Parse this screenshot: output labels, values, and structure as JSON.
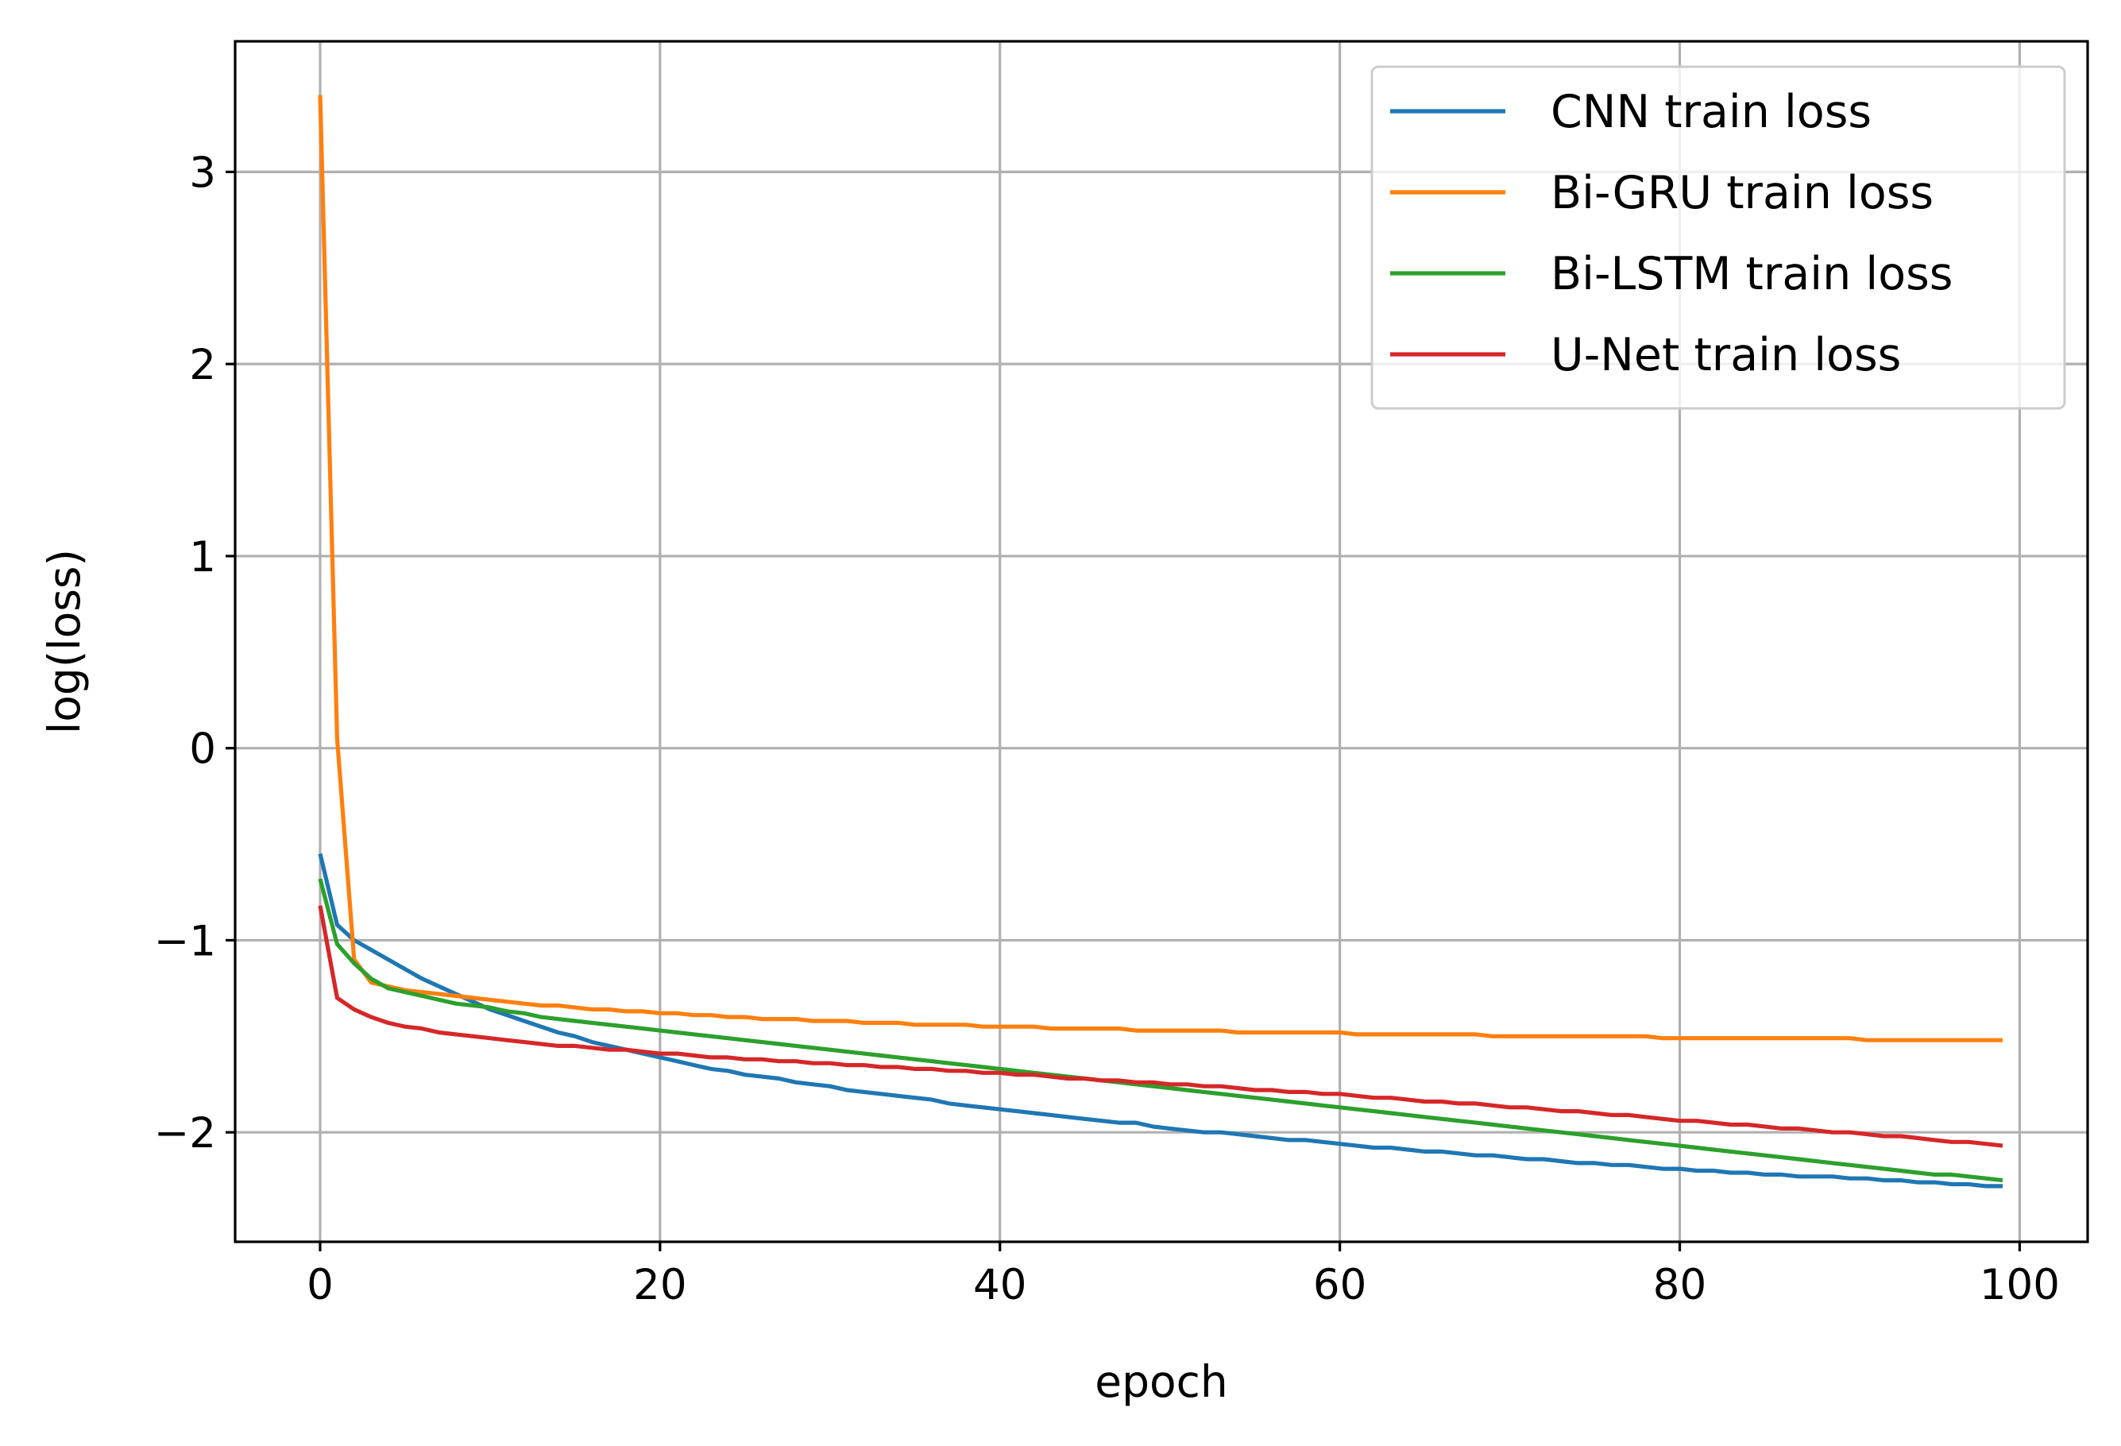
{
  "chart_data": {
    "type": "line",
    "title": "",
    "xlabel": "epoch",
    "ylabel": "log(loss)",
    "xlim": [
      -5,
      104
    ],
    "ylim": [
      -2.57,
      3.68
    ],
    "xticks": [
      0,
      20,
      40,
      60,
      80,
      100
    ],
    "yticks": [
      -2,
      -1,
      0,
      1,
      2,
      3
    ],
    "xtick_labels": [
      "0",
      "20",
      "40",
      "60",
      "80",
      "100"
    ],
    "ytick_labels": [
      "−2",
      "−1",
      "0",
      "1",
      "2",
      "3"
    ],
    "grid": true,
    "legend_position": "top-right",
    "x": [
      0,
      1,
      2,
      3,
      4,
      5,
      6,
      7,
      8,
      9,
      10,
      11,
      12,
      13,
      14,
      15,
      16,
      17,
      18,
      19,
      20,
      21,
      22,
      23,
      24,
      25,
      26,
      27,
      28,
      29,
      30,
      31,
      32,
      33,
      34,
      35,
      36,
      37,
      38,
      39,
      40,
      41,
      42,
      43,
      44,
      45,
      46,
      47,
      48,
      49,
      50,
      51,
      52,
      53,
      54,
      55,
      56,
      57,
      58,
      59,
      60,
      61,
      62,
      63,
      64,
      65,
      66,
      67,
      68,
      69,
      70,
      71,
      72,
      73,
      74,
      75,
      76,
      77,
      78,
      79,
      80,
      81,
      82,
      83,
      84,
      85,
      86,
      87,
      88,
      89,
      90,
      91,
      92,
      93,
      94,
      95,
      96,
      97,
      98,
      99
    ],
    "series": [
      {
        "name": "CNN train loss",
        "color": "#1f77b4",
        "values": [
          -0.55,
          -0.92,
          -1.0,
          -1.05,
          -1.1,
          -1.15,
          -1.2,
          -1.24,
          -1.28,
          -1.32,
          -1.36,
          -1.39,
          -1.42,
          -1.45,
          -1.48,
          -1.5,
          -1.53,
          -1.55,
          -1.57,
          -1.59,
          -1.61,
          -1.63,
          -1.65,
          -1.67,
          -1.68,
          -1.7,
          -1.71,
          -1.72,
          -1.74,
          -1.75,
          -1.76,
          -1.78,
          -1.79,
          -1.8,
          -1.81,
          -1.82,
          -1.83,
          -1.85,
          -1.86,
          -1.87,
          -1.88,
          -1.89,
          -1.9,
          -1.91,
          -1.92,
          -1.93,
          -1.94,
          -1.95,
          -1.95,
          -1.97,
          -1.98,
          -1.99,
          -2.0,
          -2.0,
          -2.01,
          -2.02,
          -2.03,
          -2.04,
          -2.04,
          -2.05,
          -2.06,
          -2.07,
          -2.08,
          -2.08,
          -2.09,
          -2.1,
          -2.1,
          -2.11,
          -2.12,
          -2.12,
          -2.13,
          -2.14,
          -2.14,
          -2.15,
          -2.16,
          -2.16,
          -2.17,
          -2.17,
          -2.18,
          -2.19,
          -2.19,
          -2.2,
          -2.2,
          -2.21,
          -2.21,
          -2.22,
          -2.22,
          -2.23,
          -2.23,
          -2.23,
          -2.24,
          -2.24,
          -2.25,
          -2.25,
          -2.26,
          -2.26,
          -2.27,
          -2.27,
          -2.28,
          -2.28
        ]
      },
      {
        "name": "Bi-GRU train loss",
        "color": "#ff7f0e",
        "values": [
          3.4,
          0.05,
          -1.1,
          -1.22,
          -1.24,
          -1.26,
          -1.27,
          -1.28,
          -1.29,
          -1.3,
          -1.31,
          -1.32,
          -1.33,
          -1.34,
          -1.34,
          -1.35,
          -1.36,
          -1.36,
          -1.37,
          -1.37,
          -1.38,
          -1.38,
          -1.39,
          -1.39,
          -1.4,
          -1.4,
          -1.41,
          -1.41,
          -1.41,
          -1.42,
          -1.42,
          -1.42,
          -1.43,
          -1.43,
          -1.43,
          -1.44,
          -1.44,
          -1.44,
          -1.44,
          -1.45,
          -1.45,
          -1.45,
          -1.45,
          -1.46,
          -1.46,
          -1.46,
          -1.46,
          -1.46,
          -1.47,
          -1.47,
          -1.47,
          -1.47,
          -1.47,
          -1.47,
          -1.48,
          -1.48,
          -1.48,
          -1.48,
          -1.48,
          -1.48,
          -1.48,
          -1.49,
          -1.49,
          -1.49,
          -1.49,
          -1.49,
          -1.49,
          -1.49,
          -1.49,
          -1.5,
          -1.5,
          -1.5,
          -1.5,
          -1.5,
          -1.5,
          -1.5,
          -1.5,
          -1.5,
          -1.5,
          -1.51,
          -1.51,
          -1.51,
          -1.51,
          -1.51,
          -1.51,
          -1.51,
          -1.51,
          -1.51,
          -1.51,
          -1.51,
          -1.51,
          -1.52,
          -1.52,
          -1.52,
          -1.52,
          -1.52,
          -1.52,
          -1.52,
          -1.52,
          -1.52
        ]
      },
      {
        "name": "Bi-LSTM train loss",
        "color": "#2ca02c",
        "values": [
          -0.68,
          -1.02,
          -1.12,
          -1.2,
          -1.25,
          -1.27,
          -1.29,
          -1.31,
          -1.33,
          -1.34,
          -1.35,
          -1.37,
          -1.38,
          -1.4,
          -1.41,
          -1.42,
          -1.43,
          -1.44,
          -1.45,
          -1.46,
          -1.47,
          -1.48,
          -1.49,
          -1.5,
          -1.51,
          -1.52,
          -1.53,
          -1.54,
          -1.55,
          -1.56,
          -1.57,
          -1.58,
          -1.59,
          -1.6,
          -1.61,
          -1.62,
          -1.63,
          -1.64,
          -1.65,
          -1.66,
          -1.67,
          -1.68,
          -1.69,
          -1.7,
          -1.71,
          -1.72,
          -1.73,
          -1.74,
          -1.75,
          -1.76,
          -1.77,
          -1.78,
          -1.79,
          -1.8,
          -1.81,
          -1.82,
          -1.83,
          -1.84,
          -1.85,
          -1.86,
          -1.87,
          -1.88,
          -1.89,
          -1.9,
          -1.91,
          -1.92,
          -1.93,
          -1.94,
          -1.95,
          -1.96,
          -1.97,
          -1.98,
          -1.99,
          -2.0,
          -2.01,
          -2.02,
          -2.03,
          -2.04,
          -2.05,
          -2.06,
          -2.07,
          -2.08,
          -2.09,
          -2.1,
          -2.11,
          -2.12,
          -2.13,
          -2.14,
          -2.15,
          -2.16,
          -2.17,
          -2.18,
          -2.19,
          -2.2,
          -2.21,
          -2.22,
          -2.22,
          -2.23,
          -2.24,
          -2.25
        ]
      },
      {
        "name": "U-Net train loss",
        "color": "#d62728",
        "values": [
          -0.82,
          -1.3,
          -1.36,
          -1.4,
          -1.43,
          -1.45,
          -1.46,
          -1.48,
          -1.49,
          -1.5,
          -1.51,
          -1.52,
          -1.53,
          -1.54,
          -1.55,
          -1.55,
          -1.56,
          -1.57,
          -1.57,
          -1.58,
          -1.59,
          -1.59,
          -1.6,
          -1.61,
          -1.61,
          -1.62,
          -1.62,
          -1.63,
          -1.63,
          -1.64,
          -1.64,
          -1.65,
          -1.65,
          -1.66,
          -1.66,
          -1.67,
          -1.67,
          -1.68,
          -1.68,
          -1.69,
          -1.69,
          -1.7,
          -1.7,
          -1.71,
          -1.72,
          -1.72,
          -1.73,
          -1.73,
          -1.74,
          -1.74,
          -1.75,
          -1.75,
          -1.76,
          -1.76,
          -1.77,
          -1.78,
          -1.78,
          -1.79,
          -1.79,
          -1.8,
          -1.8,
          -1.81,
          -1.82,
          -1.82,
          -1.83,
          -1.84,
          -1.84,
          -1.85,
          -1.85,
          -1.86,
          -1.87,
          -1.87,
          -1.88,
          -1.89,
          -1.89,
          -1.9,
          -1.91,
          -1.91,
          -1.92,
          -1.93,
          -1.94,
          -1.94,
          -1.95,
          -1.96,
          -1.96,
          -1.97,
          -1.98,
          -1.98,
          -1.99,
          -2.0,
          -2.0,
          -2.01,
          -2.02,
          -2.02,
          -2.03,
          -2.04,
          -2.05,
          -2.05,
          -2.06,
          -2.07
        ]
      }
    ]
  }
}
